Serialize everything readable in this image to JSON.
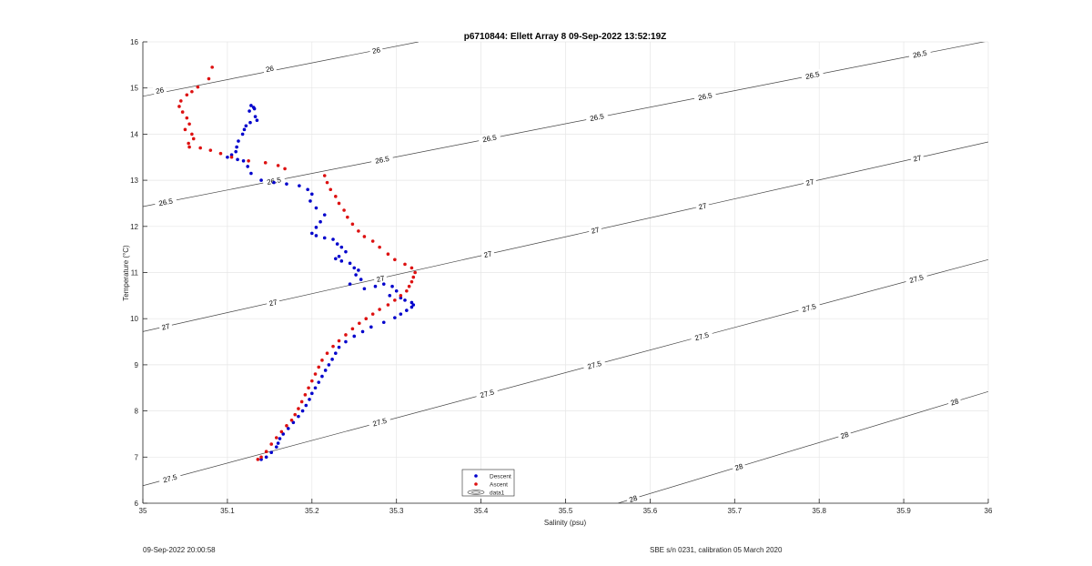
{
  "chart_data": {
    "type": "scatter",
    "title": "p6710844: Ellett Array 8 09-Sep-2022 13:52:19Z",
    "xlabel": "Salinity (psu)",
    "ylabel": "Temperature (°C)",
    "xlim": [
      35,
      36
    ],
    "ylim": [
      6,
      16
    ],
    "x_ticks": [
      "35",
      "35.1",
      "35.2",
      "35.3",
      "35.4",
      "35.5",
      "35.6",
      "35.7",
      "35.8",
      "35.9",
      "36"
    ],
    "y_ticks": [
      "6",
      "7",
      "8",
      "9",
      "10",
      "11",
      "12",
      "13",
      "14",
      "15",
      "16"
    ],
    "grid": true,
    "legend_position": "bottom-center",
    "legend": [
      "Descent",
      "Ascent",
      "data1"
    ],
    "series": [
      {
        "name": "Descent",
        "color": "#0000cc",
        "marker": "dot",
        "points": [
          [
            35.128,
            14.62
          ],
          [
            35.131,
            14.58
          ],
          [
            35.126,
            14.5
          ],
          [
            35.132,
            14.55
          ],
          [
            35.133,
            14.38
          ],
          [
            35.135,
            14.3
          ],
          [
            35.127,
            14.25
          ],
          [
            35.122,
            14.18
          ],
          [
            35.12,
            14.1
          ],
          [
            35.118,
            14.0
          ],
          [
            35.113,
            13.85
          ],
          [
            35.111,
            13.72
          ],
          [
            35.11,
            13.62
          ],
          [
            35.105,
            13.55
          ],
          [
            35.1,
            13.5
          ],
          [
            35.112,
            13.45
          ],
          [
            35.119,
            13.42
          ],
          [
            35.124,
            13.3
          ],
          [
            35.128,
            13.15
          ],
          [
            35.14,
            13.0
          ],
          [
            35.155,
            12.95
          ],
          [
            35.17,
            12.92
          ],
          [
            35.185,
            12.88
          ],
          [
            35.195,
            12.8
          ],
          [
            35.2,
            12.7
          ],
          [
            35.198,
            12.55
          ],
          [
            35.205,
            12.4
          ],
          [
            35.215,
            12.25
          ],
          [
            35.21,
            12.1
          ],
          [
            35.205,
            11.98
          ],
          [
            35.2,
            11.85
          ],
          [
            35.205,
            11.8
          ],
          [
            35.215,
            11.75
          ],
          [
            35.225,
            11.72
          ],
          [
            35.23,
            11.62
          ],
          [
            35.235,
            11.55
          ],
          [
            35.24,
            11.45
          ],
          [
            35.232,
            11.35
          ],
          [
            35.228,
            11.3
          ],
          [
            35.235,
            11.25
          ],
          [
            35.245,
            11.2
          ],
          [
            35.25,
            11.1
          ],
          [
            35.255,
            11.05
          ],
          [
            35.252,
            10.95
          ],
          [
            35.258,
            10.85
          ],
          [
            35.245,
            10.75
          ],
          [
            35.262,
            10.65
          ],
          [
            35.275,
            10.7
          ],
          [
            35.285,
            10.75
          ],
          [
            35.295,
            10.7
          ],
          [
            35.3,
            10.6
          ],
          [
            35.292,
            10.5
          ],
          [
            35.305,
            10.45
          ],
          [
            35.31,
            10.4
          ],
          [
            35.318,
            10.35
          ],
          [
            35.32,
            10.3
          ],
          [
            35.318,
            10.25
          ],
          [
            35.312,
            10.18
          ],
          [
            35.305,
            10.1
          ],
          [
            35.298,
            10.02
          ],
          [
            35.285,
            9.92
          ],
          [
            35.27,
            9.82
          ],
          [
            35.26,
            9.72
          ],
          [
            35.25,
            9.62
          ],
          [
            35.24,
            9.5
          ],
          [
            35.232,
            9.38
          ],
          [
            35.228,
            9.25
          ],
          [
            35.224,
            9.12
          ],
          [
            35.22,
            9.0
          ],
          [
            35.216,
            8.88
          ],
          [
            35.212,
            8.75
          ],
          [
            35.208,
            8.62
          ],
          [
            35.204,
            8.5
          ],
          [
            35.2,
            8.38
          ],
          [
            35.197,
            8.25
          ],
          [
            35.193,
            8.12
          ],
          [
            35.189,
            8.0
          ],
          [
            35.184,
            7.88
          ],
          [
            35.178,
            7.75
          ],
          [
            35.172,
            7.62
          ],
          [
            35.166,
            7.5
          ],
          [
            35.162,
            7.4
          ],
          [
            35.16,
            7.3
          ],
          [
            35.158,
            7.22
          ],
          [
            35.152,
            7.1
          ],
          [
            35.146,
            7.0
          ],
          [
            35.14,
            6.95
          ]
        ]
      },
      {
        "name": "Ascent",
        "color": "#dd1111",
        "marker": "dot",
        "points": [
          [
            35.082,
            15.45
          ],
          [
            35.078,
            15.2
          ],
          [
            35.065,
            15.02
          ],
          [
            35.058,
            14.92
          ],
          [
            35.052,
            14.85
          ],
          [
            35.045,
            14.72
          ],
          [
            35.043,
            14.6
          ],
          [
            35.047,
            14.48
          ],
          [
            35.052,
            14.35
          ],
          [
            35.055,
            14.22
          ],
          [
            35.05,
            14.1
          ],
          [
            35.058,
            14.0
          ],
          [
            35.06,
            13.9
          ],
          [
            35.054,
            13.8
          ],
          [
            35.055,
            13.72
          ],
          [
            35.068,
            13.7
          ],
          [
            35.08,
            13.65
          ],
          [
            35.092,
            13.58
          ],
          [
            35.105,
            13.5
          ],
          [
            35.125,
            13.42
          ],
          [
            35.145,
            13.38
          ],
          [
            35.16,
            13.32
          ],
          [
            35.168,
            13.25
          ],
          [
            35.215,
            13.1
          ],
          [
            35.218,
            12.95
          ],
          [
            35.222,
            12.8
          ],
          [
            35.228,
            12.65
          ],
          [
            35.232,
            12.5
          ],
          [
            35.238,
            12.35
          ],
          [
            35.242,
            12.2
          ],
          [
            35.248,
            12.05
          ],
          [
            35.255,
            11.9
          ],
          [
            35.262,
            11.78
          ],
          [
            35.272,
            11.68
          ],
          [
            35.28,
            11.55
          ],
          [
            35.29,
            11.4
          ],
          [
            35.298,
            11.28
          ],
          [
            35.31,
            11.18
          ],
          [
            35.318,
            11.1
          ],
          [
            35.322,
            11.0
          ],
          [
            35.32,
            10.9
          ],
          [
            35.318,
            10.8
          ],
          [
            35.315,
            10.7
          ],
          [
            35.312,
            10.6
          ],
          [
            35.305,
            10.5
          ],
          [
            35.298,
            10.4
          ],
          [
            35.29,
            10.3
          ],
          [
            35.28,
            10.2
          ],
          [
            35.272,
            10.1
          ],
          [
            35.264,
            10.0
          ],
          [
            35.256,
            9.9
          ],
          [
            35.248,
            9.78
          ],
          [
            35.24,
            9.65
          ],
          [
            35.232,
            9.52
          ],
          [
            35.225,
            9.4
          ],
          [
            35.218,
            9.25
          ],
          [
            35.212,
            9.1
          ],
          [
            35.208,
            8.95
          ],
          [
            35.204,
            8.8
          ],
          [
            35.2,
            8.65
          ],
          [
            35.196,
            8.5
          ],
          [
            35.192,
            8.35
          ],
          [
            35.188,
            8.2
          ],
          [
            35.184,
            8.05
          ],
          [
            35.18,
            7.92
          ],
          [
            35.176,
            7.8
          ],
          [
            35.17,
            7.68
          ],
          [
            35.164,
            7.55
          ],
          [
            35.158,
            7.42
          ],
          [
            35.152,
            7.28
          ],
          [
            35.146,
            7.12
          ],
          [
            35.14,
            7.0
          ],
          [
            35.136,
            6.95
          ]
        ]
      }
    ],
    "isopycnals": [
      {
        "label": "26",
        "points": [
          [
            35.0,
            14.82
          ],
          [
            35.326,
            16.0
          ]
        ],
        "label_positions": [
          [
            35.02,
            14.95
          ],
          [
            35.15,
            15.42
          ],
          [
            35.276,
            15.82
          ]
        ]
      },
      {
        "label": "26.5",
        "points": [
          [
            35.0,
            12.43
          ],
          [
            36.0,
            16.02
          ]
        ],
        "label_positions": [
          [
            35.027,
            12.53
          ],
          [
            35.155,
            12.99
          ],
          [
            35.283,
            13.45
          ],
          [
            35.41,
            13.91
          ],
          [
            35.537,
            14.37
          ],
          [
            35.665,
            14.82
          ],
          [
            35.792,
            15.28
          ],
          [
            35.919,
            15.74
          ]
        ]
      },
      {
        "label": "27",
        "points": [
          [
            35.0,
            9.72
          ],
          [
            36.0,
            13.83
          ]
        ],
        "label_positions": [
          [
            35.027,
            9.83
          ],
          [
            35.154,
            10.35
          ],
          [
            35.281,
            10.87
          ],
          [
            35.408,
            11.4
          ],
          [
            35.535,
            11.92
          ],
          [
            35.662,
            12.44
          ],
          [
            35.789,
            12.96
          ],
          [
            35.916,
            13.48
          ]
        ]
      },
      {
        "label": "27.5",
        "points": [
          [
            35.0,
            6.38
          ],
          [
            36.0,
            11.28
          ]
        ],
        "label_positions": [
          [
            35.032,
            6.54
          ],
          [
            35.28,
            7.76
          ],
          [
            35.407,
            8.38
          ],
          [
            35.534,
            9.0
          ],
          [
            35.661,
            9.62
          ],
          [
            35.788,
            10.24
          ],
          [
            35.915,
            10.87
          ]
        ]
      },
      {
        "label": "28",
        "points": [
          [
            35.562,
            6.0
          ],
          [
            36.0,
            8.42
          ]
        ],
        "label_positions": [
          [
            35.58,
            6.1
          ],
          [
            35.705,
            6.79
          ],
          [
            35.83,
            7.48
          ],
          [
            35.96,
            8.2
          ]
        ]
      }
    ],
    "footer_left": "09-Sep-2022 20:00:58",
    "footer_right": "SBE s/n 0231, calibration 05 March 2020"
  }
}
